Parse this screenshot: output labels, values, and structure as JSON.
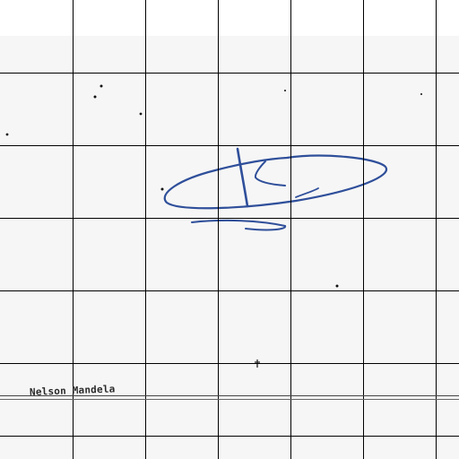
{
  "document": {
    "printed_name": "Nelson Mandela"
  },
  "colors": {
    "ink": "#2f4f9a",
    "grid": "#000000",
    "paper": "#f6f6f6"
  }
}
